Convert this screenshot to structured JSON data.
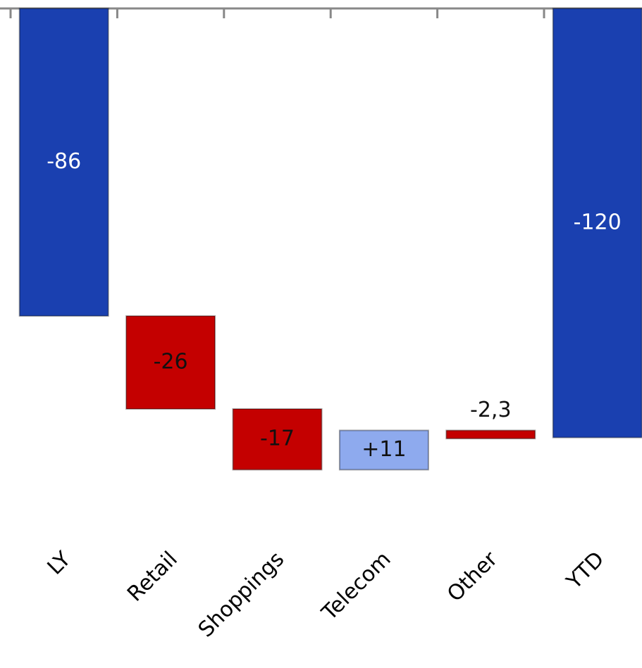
{
  "chart_data": {
    "type": "waterfall",
    "categories": [
      "LY",
      "Retail",
      "Shoppings",
      "Telecom",
      "Other",
      "YTD"
    ],
    "values": [
      -86,
      -26,
      -17,
      11,
      -2.3,
      -120
    ],
    "value_labels": [
      "-86",
      "-26",
      "-17",
      "+11",
      "-2,3",
      "-120"
    ],
    "is_total": [
      true,
      false,
      false,
      false,
      false,
      true
    ],
    "color_total": "#1a40b0",
    "color_negative": "#c40000",
    "color_positive": "#8eaaee"
  }
}
